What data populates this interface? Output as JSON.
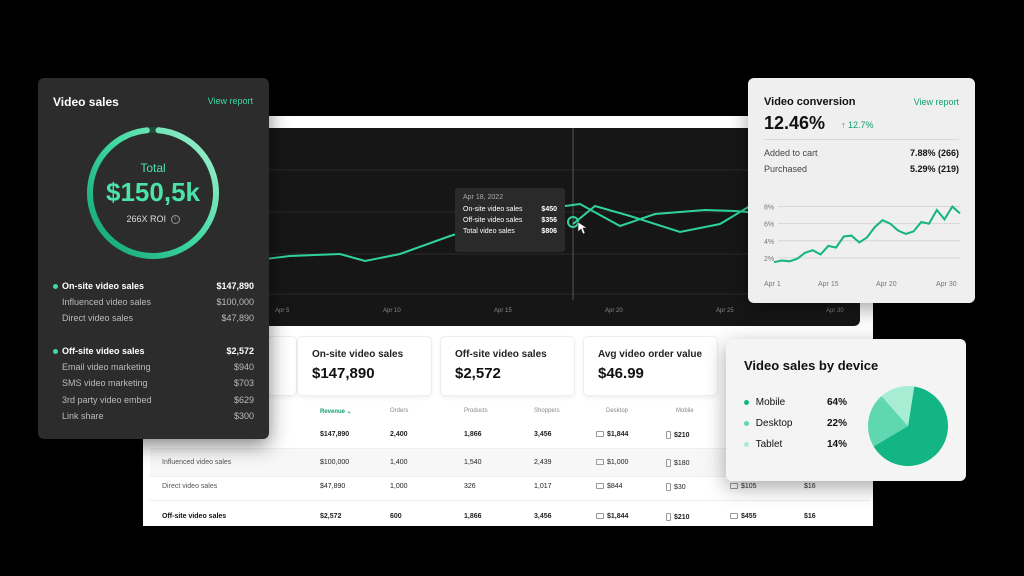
{
  "main_chart": {
    "x_ticks": [
      "Apr 5",
      "Apr 10",
      "Apr 15",
      "Apr 20",
      "Apr 25",
      "Apr 30"
    ],
    "tooltip": {
      "date": "Apr 18, 2022",
      "rows": [
        {
          "label": "On-site video sales",
          "value": "$450"
        },
        {
          "label": "Off-site video sales",
          "value": "$356"
        },
        {
          "label": "Total video sales",
          "value": "$806"
        }
      ]
    }
  },
  "kpis": [
    {
      "label": "On-site video sales",
      "value": "$147,890"
    },
    {
      "label": "Off-site video sales",
      "value": "$2,572"
    },
    {
      "label": "Avg video order value",
      "value": "$46.99"
    }
  ],
  "table": {
    "headers": [
      "Revenue",
      "Orders",
      "Products",
      "Shoppers",
      "Desktop",
      "Mobile"
    ],
    "rows": [
      {
        "label": "",
        "revenue": "$147,890",
        "orders": "2,400",
        "products": "1,866",
        "shoppers": "3,456",
        "desktop": "$1,844",
        "mobile": "$210",
        "c7": "",
        "c8": ""
      },
      {
        "label": "Influenced video sales",
        "revenue": "$100,000",
        "orders": "1,400",
        "products": "1,540",
        "shoppers": "2,439",
        "desktop": "$1,000",
        "mobile": "$180",
        "c7": "",
        "c8": ""
      },
      {
        "label": "Direct video sales",
        "revenue": "$47,890",
        "orders": "1,000",
        "products": "326",
        "shoppers": "1,017",
        "desktop": "$844",
        "mobile": "$30",
        "c7": "$105",
        "c8": "$16"
      },
      {
        "label": "Off-site video sales",
        "revenue": "$2,572",
        "orders": "600",
        "products": "1,866",
        "shoppers": "3,456",
        "desktop": "$1,844",
        "mobile": "$210",
        "c7": "$455",
        "c8": "$16"
      }
    ]
  },
  "video_sales": {
    "title": "Video sales",
    "link": "View report",
    "total_label": "Total",
    "total_value": "$150,5k",
    "roi": "266X ROI",
    "info_icon": "i",
    "groups": [
      {
        "label": "On-site video sales",
        "value": "$147,890",
        "items": [
          {
            "label": "Influenced video sales",
            "value": "$100,000"
          },
          {
            "label": "Direct video sales",
            "value": "$47,890"
          }
        ]
      },
      {
        "label": "Off-site video sales",
        "value": "$2,572",
        "items": [
          {
            "label": "Email video marketing",
            "value": "$940"
          },
          {
            "label": "SMS video marketing",
            "value": "$703"
          },
          {
            "label": "3rd party video embed",
            "value": "$629"
          },
          {
            "label": "Link share",
            "value": "$300"
          }
        ]
      }
    ]
  },
  "conversion": {
    "title": "Video conversion",
    "link": "View report",
    "value": "12.46%",
    "delta": "↑ 12.7%",
    "rows": [
      {
        "label": "Added to cart",
        "value": "7.88% (266)"
      },
      {
        "label": "Purchased",
        "value": "5.29% (219)"
      }
    ],
    "chart_data": {
      "type": "line",
      "y_ticks": [
        "8%",
        "6%",
        "4%",
        "2%"
      ],
      "x_ticks": [
        "Apr 1",
        "Apr 15",
        "Apr 20",
        "Apr 30"
      ],
      "ylim": [
        0,
        9
      ],
      "values": [
        1.5,
        1.7,
        1.6,
        1.9,
        2.6,
        2.9,
        2.4,
        3.4,
        3.2,
        4.5,
        4.6,
        3.8,
        4.4,
        5.6,
        6.4,
        6.0,
        5.2,
        4.8,
        5.1,
        6.2,
        6.0,
        7.6,
        6.5,
        8.0,
        7.2
      ]
    }
  },
  "device": {
    "title": "Video sales by device",
    "items": [
      {
        "label": "Mobile",
        "value": "64%",
        "share": 64,
        "color": "#12b583"
      },
      {
        "label": "Desktop",
        "value": "22%",
        "share": 22,
        "color": "#5fd8b0"
      },
      {
        "label": "Tablet",
        "value": "14%",
        "share": 14,
        "color": "#a6edd3"
      }
    ]
  },
  "colors": {
    "accent": "#3ed8a0",
    "accent_dark": "#0e9e72"
  }
}
